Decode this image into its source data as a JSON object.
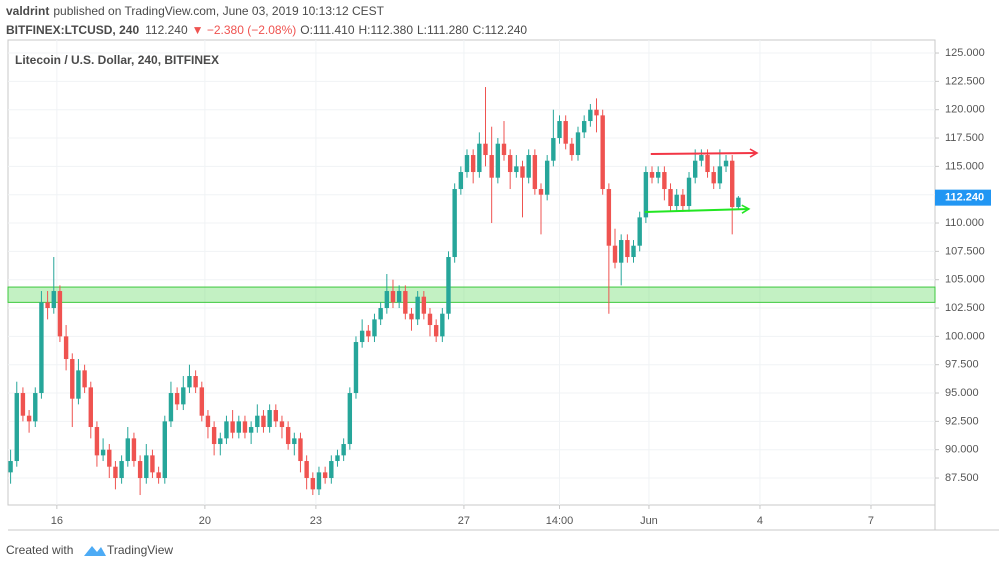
{
  "header": {
    "author": "valdrint",
    "published": "published on TradingView.com, June 03, 2019 10:13:12 CEST",
    "symbol": "BITFINEX:LTCUSD, 240",
    "last": "112.240",
    "change": "▼ −2.380 (−2.08%)",
    "ohlc": [
      "O:111.410",
      "H:112.380",
      "L:111.280",
      "C:112.240"
    ]
  },
  "chart_data": {
    "type": "candlestick",
    "title": "Litecoin / U.S. Dollar, 240, BITFINEX",
    "up_color": "#26a69a",
    "down_color": "#ef5350",
    "grid": true,
    "xlim": [
      14.68,
      39.73
    ],
    "ylim": [
      85.12,
      126.15
    ],
    "xticks": [
      16,
      20,
      23,
      27,
      {
        "value": 29.583,
        "label": "14:00"
      },
      {
        "value": 32,
        "label": "Jun"
      },
      {
        "value": 35,
        "label": "4"
      },
      {
        "value": 38,
        "label": "7"
      }
    ],
    "yticks": [
      {
        "value": 87.5,
        "label": "87.500"
      },
      {
        "value": 90,
        "label": "90.000"
      },
      {
        "value": 92.5,
        "label": "92.500"
      },
      {
        "value": 95,
        "label": "95.000"
      },
      {
        "value": 97.5,
        "label": "97.500"
      },
      {
        "value": 100,
        "label": "100.000"
      },
      {
        "value": 102.5,
        "label": "102.500"
      },
      {
        "value": 105,
        "label": "105.000"
      },
      {
        "value": 107.5,
        "label": "107.500"
      },
      {
        "value": 110,
        "label": "110.000"
      },
      {
        "value": 112.5,
        "label": "112.500"
      },
      {
        "value": 115,
        "label": "115.000"
      },
      {
        "value": 117.5,
        "label": "117.500"
      },
      {
        "value": 120,
        "label": "120.000"
      },
      {
        "value": 122.5,
        "label": "122.500"
      },
      {
        "value": 125,
        "label": "125.000"
      }
    ],
    "last_price": {
      "value": 112.24,
      "label": "112.240",
      "color": "#2196f3"
    },
    "zones": [
      {
        "from": 103.0,
        "to": 104.35,
        "color": "#7be07b"
      }
    ],
    "trendlines": [
      {
        "x": [
          32.05,
          34.92
        ],
        "y": [
          116.09,
          116.18
        ],
        "color": "#f23645"
      },
      {
        "x": [
          31.89,
          34.7
        ],
        "y": [
          110.97,
          111.24
        ],
        "color": "#22e622"
      }
    ],
    "candles": {
      "x": [
        14.75,
        14.917,
        15.083,
        15.25,
        15.417,
        15.583,
        15.75,
        15.917,
        16.083,
        16.25,
        16.417,
        16.583,
        16.75,
        16.917,
        17.083,
        17.25,
        17.417,
        17.583,
        17.75,
        17.917,
        18.083,
        18.25,
        18.417,
        18.583,
        18.75,
        18.917,
        19.083,
        19.25,
        19.417,
        19.583,
        19.75,
        19.917,
        20.083,
        20.25,
        20.417,
        20.583,
        20.75,
        20.917,
        21.083,
        21.25,
        21.417,
        21.583,
        21.75,
        21.917,
        22.083,
        22.25,
        22.417,
        22.583,
        22.75,
        22.917,
        23.083,
        23.25,
        23.417,
        23.583,
        23.75,
        23.917,
        24.083,
        24.25,
        24.417,
        24.583,
        24.75,
        24.917,
        25.083,
        25.25,
        25.417,
        25.583,
        25.75,
        25.917,
        26.083,
        26.25,
        26.417,
        26.583,
        26.75,
        26.917,
        27.083,
        27.25,
        27.417,
        27.583,
        27.75,
        27.917,
        28.083,
        28.25,
        28.417,
        28.583,
        28.75,
        28.917,
        29.083,
        29.25,
        29.417,
        29.583,
        29.75,
        29.917,
        30.083,
        30.25,
        30.417,
        30.583,
        30.75,
        30.917,
        31.083,
        31.25,
        31.417,
        31.583,
        31.75,
        31.917,
        32.083,
        32.25,
        32.417,
        32.583,
        32.75,
        32.917,
        33.083,
        33.25,
        33.417,
        33.583,
        33.75,
        33.917,
        34.083,
        34.25,
        34.417
      ],
      "open": [
        88,
        89,
        95,
        93,
        92.5,
        95,
        103,
        102.5,
        104,
        100,
        98,
        94.5,
        97,
        95.5,
        92,
        89.5,
        90,
        88.5,
        87.5,
        89,
        91,
        89,
        87.5,
        89.5,
        88,
        87.5,
        92.5,
        95,
        94,
        95.5,
        96.5,
        95.5,
        93,
        92,
        90.5,
        91,
        92.5,
        91.5,
        92.5,
        91.5,
        92,
        93,
        92,
        93.5,
        92.5,
        92,
        90.5,
        91,
        89,
        87.5,
        86.5,
        88,
        87.5,
        89,
        89.5,
        90.5,
        95,
        99.5,
        100.5,
        100,
        101.5,
        102.5,
        104,
        103,
        104,
        102,
        101.5,
        103.5,
        102,
        101,
        100,
        102,
        107,
        113,
        114.5,
        116,
        114.5,
        117,
        116,
        114,
        117,
        116,
        114.5,
        115,
        114,
        116,
        113,
        112.5,
        115.5,
        117.5,
        119,
        117,
        116,
        118,
        119,
        120,
        119.5,
        113,
        108,
        106.5,
        108.5,
        107,
        108,
        110.5,
        114.5,
        114,
        114.5,
        113,
        111.5,
        112.5,
        111.5,
        114,
        115.5,
        116,
        114.5,
        113.5,
        115,
        115.5,
        111.41
      ],
      "high": [
        90,
        96,
        95.5,
        93.5,
        95.5,
        104,
        104,
        107,
        104.5,
        101,
        98.5,
        98,
        97.5,
        96,
        92.5,
        91,
        90.5,
        89,
        89.5,
        92,
        91.5,
        89.5,
        90.5,
        90,
        88.5,
        93,
        96,
        95.5,
        96.5,
        97.5,
        97,
        96,
        93.5,
        92.5,
        91.5,
        93,
        93.5,
        93,
        93,
        92.5,
        94,
        93.5,
        94,
        94,
        93,
        92.5,
        91.5,
        91.5,
        89.5,
        88,
        88.5,
        88.5,
        89.5,
        90,
        91,
        95.5,
        100,
        101.5,
        101,
        102,
        103,
        105.5,
        105,
        104.5,
        104.5,
        102.5,
        104,
        104,
        102.5,
        101.5,
        102.5,
        107.5,
        113.5,
        115,
        116.5,
        116.5,
        118,
        122,
        118.5,
        117.5,
        119,
        116.5,
        116,
        115.5,
        116.5,
        116.5,
        113.5,
        116,
        120,
        119.5,
        119.5,
        117.5,
        118.5,
        119.5,
        120.5,
        121,
        120,
        113.5,
        109.5,
        109,
        109,
        108.5,
        111,
        115,
        115,
        115,
        115,
        113.5,
        113,
        113,
        114.5,
        116.5,
        116.5,
        116.5,
        115,
        116.5,
        116,
        116,
        112.38
      ],
      "low": [
        87,
        88.5,
        92.5,
        91.5,
        92,
        94.5,
        101.5,
        102,
        99.5,
        97,
        92,
        94,
        95,
        91,
        88.5,
        89,
        87.5,
        86.5,
        87,
        88.5,
        88.5,
        86,
        87,
        87.5,
        87,
        87,
        92,
        93.5,
        93.5,
        95,
        95,
        92.5,
        91,
        89.5,
        89.5,
        90.5,
        91,
        91,
        91,
        90.5,
        91.5,
        91.5,
        91.5,
        92,
        91,
        90,
        89.5,
        88,
        86.5,
        86,
        86,
        87,
        87,
        88.5,
        89,
        90,
        94.5,
        99,
        99.5,
        99.5,
        101,
        102,
        102.5,
        102.5,
        101.5,
        100.5,
        101,
        101.5,
        100,
        99.5,
        99.5,
        101.5,
        106.5,
        112.5,
        114,
        113.5,
        114,
        115,
        110,
        113.5,
        115.5,
        113,
        114,
        110.5,
        113.5,
        112.5,
        109,
        112,
        115,
        117,
        116.5,
        115.5,
        115.5,
        117.5,
        118.5,
        118,
        112.5,
        102,
        106,
        104.5,
        106.5,
        106.5,
        107.5,
        110,
        113.5,
        113.5,
        112,
        111,
        111,
        111,
        111,
        113.5,
        115,
        114,
        113,
        113,
        114.5,
        109,
        111.28
      ],
      "close": [
        89,
        95,
        93,
        92.5,
        95,
        103,
        102.5,
        104,
        100,
        98,
        94.5,
        97,
        95.5,
        92,
        89.5,
        90,
        88.5,
        87.5,
        89,
        91,
        89,
        87.5,
        89.5,
        88,
        87.5,
        92.5,
        95,
        94,
        95.5,
        96.5,
        95.5,
        93,
        92,
        90.5,
        91,
        92.5,
        91.5,
        92.5,
        91.5,
        92,
        93,
        92,
        93.5,
        92.5,
        92,
        90.5,
        91,
        89,
        87.5,
        86.5,
        88,
        87.5,
        89,
        89.5,
        90.5,
        95,
        99.5,
        100.5,
        100,
        101.5,
        102.5,
        104,
        103,
        104,
        102,
        101.5,
        103.5,
        102,
        101,
        100,
        102,
        107,
        113,
        114.5,
        116,
        114.5,
        117,
        116,
        114,
        117,
        116,
        114.5,
        115,
        114,
        116,
        113,
        112.5,
        115.5,
        117.5,
        119,
        117,
        116,
        118,
        119,
        120,
        119.5,
        113,
        108,
        106.5,
        108.5,
        107,
        108,
        110.5,
        114.5,
        114,
        114.5,
        113,
        111.5,
        112.5,
        111.5,
        114,
        115.5,
        116,
        114.5,
        113.5,
        115,
        115.5,
        111.41,
        112.24
      ]
    }
  },
  "footer": {
    "created": "Created with",
    "brand": "TradingView"
  }
}
